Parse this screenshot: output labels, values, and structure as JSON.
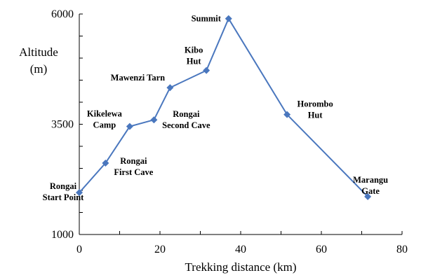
{
  "chart_data": {
    "type": "line",
    "title": "",
    "xlabel": "Trekking distance (km)",
    "ylabel": [
      "Altitude",
      "(m)"
    ],
    "xlim": [
      0,
      80
    ],
    "ylim": [
      1000,
      6000
    ],
    "x_ticks": [
      0,
      20,
      40,
      60,
      80
    ],
    "y_ticks": [
      1000,
      3500,
      6000
    ],
    "grid": false,
    "line_color": "#4A77BE",
    "marker": "diamond",
    "points": [
      {
        "x": 0,
        "y": 1950,
        "label": [
          "Rongai",
          "Start Point"
        ]
      },
      {
        "x": 6.5,
        "y": 2620,
        "label": [
          "Rongai",
          "First Cave"
        ]
      },
      {
        "x": 12.5,
        "y": 3450,
        "label": [
          "Kikelewa",
          "Camp"
        ]
      },
      {
        "x": 18.5,
        "y": 3600,
        "label": [
          "Rongai",
          "Second Cave"
        ]
      },
      {
        "x": 22.5,
        "y": 4330,
        "label": [
          "Mawenzi Tarn"
        ]
      },
      {
        "x": 31.5,
        "y": 4720,
        "label": [
          "Kibo",
          "Hut"
        ]
      },
      {
        "x": 37,
        "y": 5895,
        "label": [
          "Summit"
        ]
      },
      {
        "x": 51.5,
        "y": 3720,
        "label": [
          "Horombo",
          "Hut"
        ]
      },
      {
        "x": 71.5,
        "y": 1860,
        "label": [
          "Marangu",
          "Gate"
        ]
      }
    ]
  }
}
